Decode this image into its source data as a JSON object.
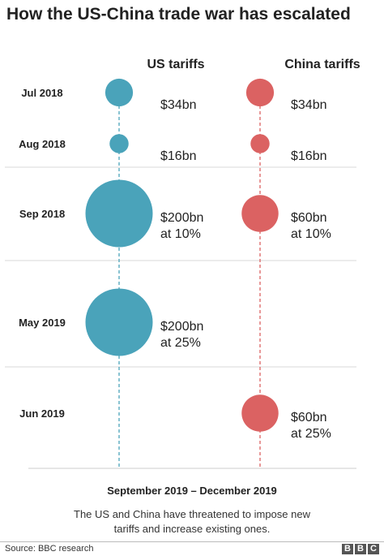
{
  "title": "How the US-China trade war has escalated",
  "source": "Source: BBC research",
  "logo": [
    "B",
    "B",
    "C"
  ],
  "chart_data": {
    "type": "bubble-timeline",
    "columns": [
      {
        "name": "US tariffs",
        "color": "#4aa3ba"
      },
      {
        "name": "China tariffs",
        "color": "#db6262"
      }
    ],
    "rows": [
      {
        "date": "Jul 2018",
        "us": {
          "value": 34,
          "label": [
            "$34bn"
          ]
        },
        "china": {
          "value": 34,
          "label": [
            "$34bn"
          ]
        }
      },
      {
        "date": "Aug 2018",
        "us": {
          "value": 16,
          "label": [
            "$16bn"
          ]
        },
        "china": {
          "value": 16,
          "label": [
            "$16bn"
          ]
        }
      },
      {
        "date": "Sep 2018",
        "us": {
          "value": 200,
          "label": [
            "$200bn",
            "at 10%"
          ]
        },
        "china": {
          "value": 60,
          "label": [
            "$60bn",
            "at 10%"
          ]
        }
      },
      {
        "date": "May 2019",
        "us": {
          "value": 200,
          "label": [
            "$200bn",
            "at 25%"
          ]
        },
        "china": null
      },
      {
        "date": "Jun 2019",
        "us": null,
        "china": {
          "value": 60,
          "label": [
            "$60bn",
            "at 25%"
          ]
        }
      }
    ],
    "future_period": "September 2019 – December 2019",
    "future_note": [
      "The US and China have threatened to impose new",
      "tariffs and increase existing ones."
    ]
  }
}
